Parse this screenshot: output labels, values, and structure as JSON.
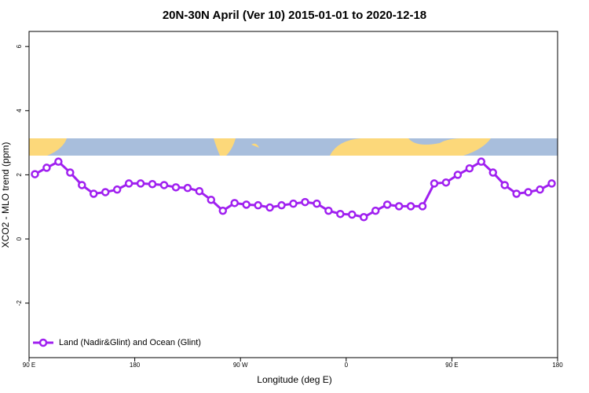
{
  "chart_data": {
    "type": "line",
    "title": "20N-30N April (Ver 10)   2015-01-01 to 2020-12-18",
    "x_label": "Longitude (deg E)",
    "y_label": "XCO2 - MLO trend (ppm)",
    "x": [
      95,
      105,
      115,
      125,
      135,
      145,
      155,
      165,
      175,
      185,
      195,
      205,
      215,
      225,
      235,
      245,
      255,
      265,
      275,
      285,
      295,
      305,
      315,
      325,
      335,
      345,
      355,
      365,
      375,
      385,
      395,
      405,
      415,
      425,
      435,
      445,
      455,
      465,
      475,
      485,
      495,
      505,
      515,
      525,
      535
    ],
    "series": [
      {
        "name": "Land (Nadir&Glint) and Ocean (Glint)",
        "color": "#a020f0",
        "values": [
          2.02,
          2.22,
          2.41,
          2.07,
          1.68,
          1.41,
          1.46,
          1.54,
          1.73,
          1.73,
          1.71,
          1.68,
          1.61,
          1.59,
          1.49,
          1.22,
          0.88,
          1.12,
          1.07,
          1.05,
          0.98,
          1.05,
          1.1,
          1.15,
          1.1,
          0.88,
          0.78,
          0.76,
          0.68,
          0.88,
          1.07,
          1.02,
          1.02,
          1.02,
          1.73,
          1.76,
          2.0,
          2.2,
          2.41,
          2.07,
          1.68,
          1.41,
          1.46,
          1.54,
          1.73
        ]
      }
    ],
    "xlim": [
      90,
      540
    ],
    "xticks": [
      {
        "value": 90,
        "label": "90 E"
      },
      180,
      {
        "value": 270,
        "label": "90 W"
      },
      {
        "value": 360,
        "label": "0"
      },
      {
        "value": 450,
        "label": "90 E"
      },
      {
        "value": 540,
        "label": "180"
      }
    ],
    "ylim": [
      -3.7,
      6.47
    ],
    "yticks": [
      -2,
      0,
      2,
      4,
      6
    ],
    "legend": "bottom-left"
  }
}
